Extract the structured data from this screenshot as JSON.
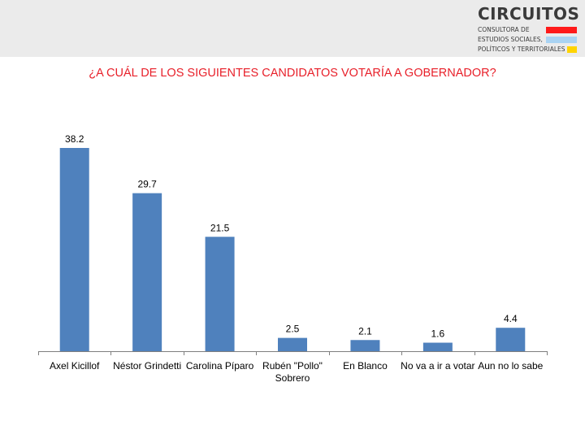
{
  "header": {
    "logo": {
      "title": "CIRCUITOS",
      "line1": "CONSULTORA DE",
      "line2": "ESTUDIOS SOCIALES,",
      "line3": "POLÍTICOS Y TERRITORIALES",
      "bar_colors": [
        "#ff1a1a",
        "#a9d3f3",
        "#ffd400"
      ]
    }
  },
  "colors": {
    "header_bg": "#ebebeb",
    "title": "#e8202a",
    "bar": "#4f81bd",
    "axis": "#7f7f7f"
  },
  "chart_data": {
    "type": "bar",
    "title": "¿A CUÁL DE LOS SIGUIENTES CANDIDATOS VOTARÍA A GOBERNADOR?",
    "categories": [
      [
        "Axel Kicillof"
      ],
      [
        "Néstor Grindetti"
      ],
      [
        "Carolina Píparo"
      ],
      [
        "Rubén \"Pollo\"",
        "Sobrero"
      ],
      [
        "En Blanco"
      ],
      [
        "No va a ir a votar"
      ],
      [
        "Aun no lo sabe"
      ]
    ],
    "values": [
      38.2,
      29.7,
      21.5,
      2.5,
      2.1,
      1.6,
      4.4
    ],
    "value_labels": [
      "38.2",
      "29.7",
      "21.5",
      "2.5",
      "2.1",
      "1.6",
      "4.4"
    ],
    "xlabel": "",
    "ylabel": "",
    "ylim": [
      0,
      38.2
    ],
    "grid": false,
    "legend": "none"
  }
}
